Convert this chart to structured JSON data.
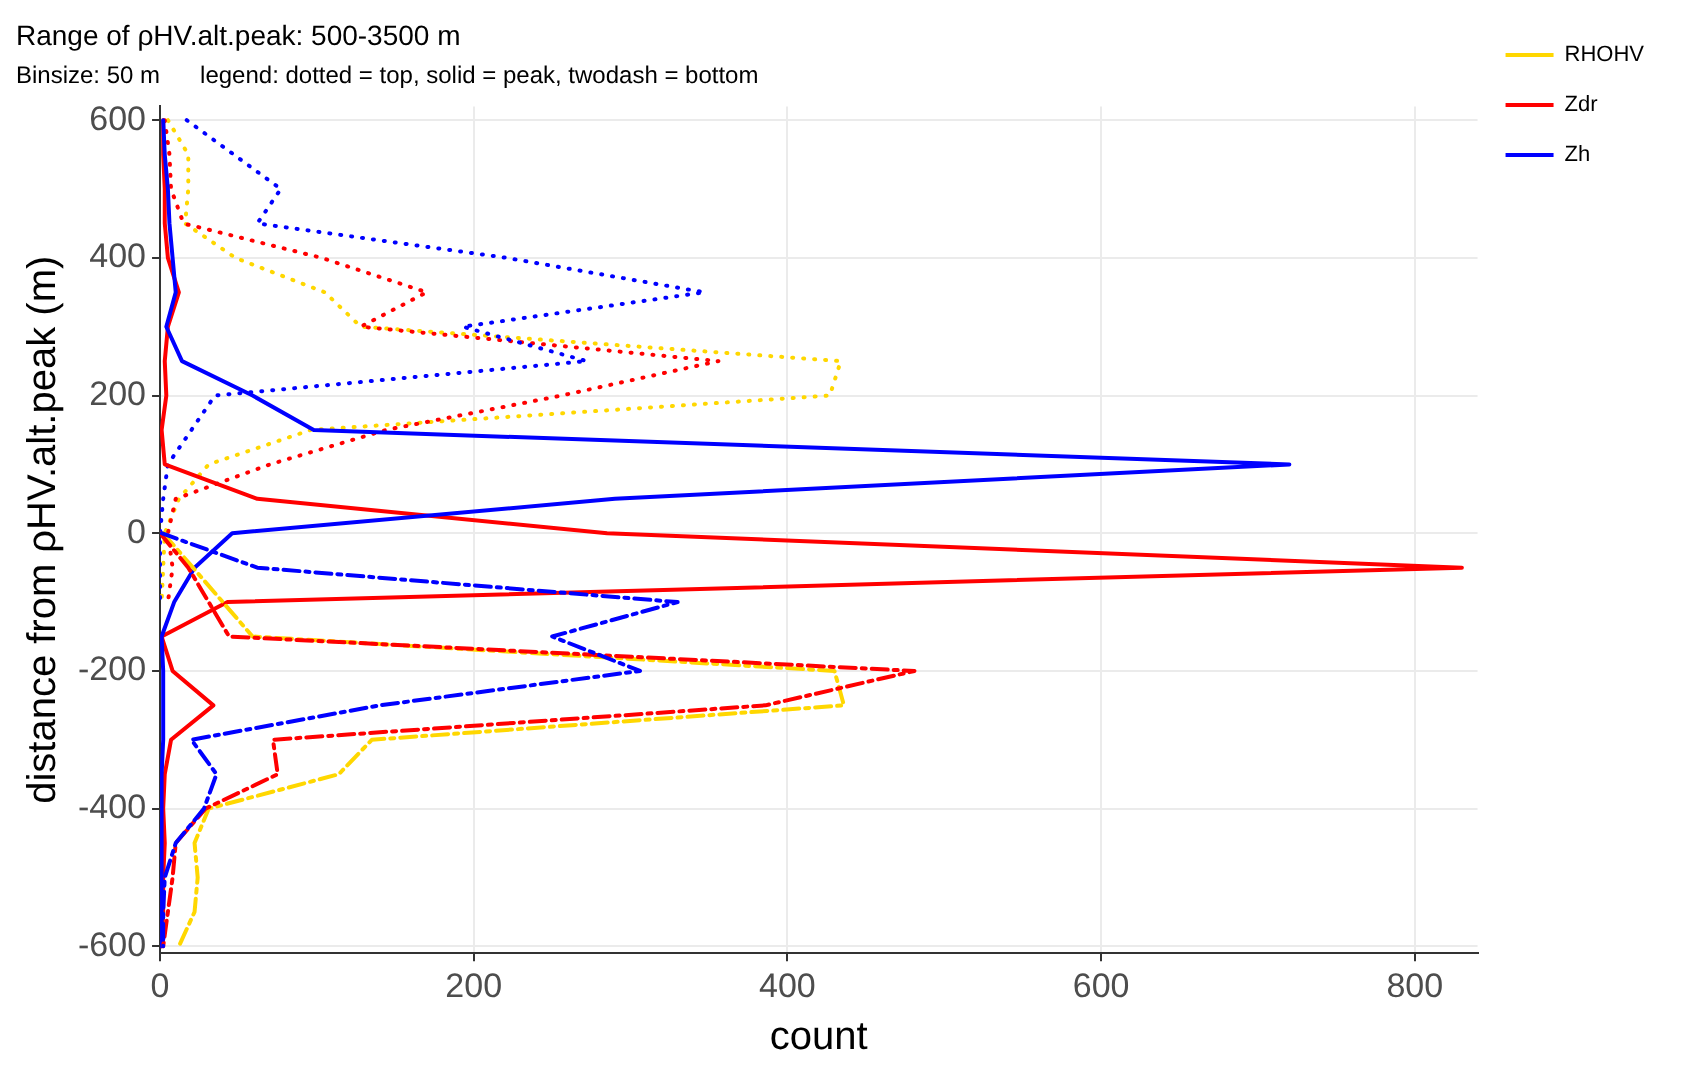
{
  "chart_data": {
    "type": "line",
    "title": "Range of ρHV.alt.peak: 500-3500 m",
    "subtitle": "Binsize: 50 m      legend: dotted = top, solid = peak, twodash = bottom",
    "xlabel": "count",
    "ylabel": "distance from ρHV.alt.peak (m)",
    "xlim": [
      0,
      840
    ],
    "xticks": [
      0,
      200,
      400,
      600,
      800
    ],
    "ylim": [
      -610,
      620
    ],
    "yticks": [
      -600,
      -400,
      -200,
      0,
      200,
      400,
      600
    ],
    "grid": true,
    "legend": "top right",
    "marker": "none",
    "series": [
      {
        "name": "RHOHV",
        "color": "#ffd700",
        "line_style": "dotted",
        "x": [
          5,
          18,
          18,
          16,
          48,
          105,
          128,
          434,
          427,
          96,
          31,
          12,
          3,
          2,
          1
        ],
        "values": [
          600,
          550,
          500,
          450,
          400,
          350,
          300,
          250,
          200,
          150,
          100,
          50,
          0,
          -50,
          -100
        ]
      },
      {
        "color": "#ff0000",
        "line_style": "dotted",
        "x": [
          3,
          6,
          7,
          15,
          103,
          170,
          128,
          356,
          256,
          144,
          70,
          10,
          5,
          8,
          5
        ],
        "values": [
          600,
          550,
          500,
          450,
          400,
          350,
          300,
          250,
          200,
          150,
          100,
          50,
          0,
          -50,
          -100
        ]
      },
      {
        "color": "#0000ff",
        "line_style": "dotted",
        "x": [
          17,
          47,
          77,
          62,
          221,
          347,
          193,
          272,
          35,
          20,
          5,
          2,
          0,
          0,
          0
        ],
        "values": [
          600,
          550,
          500,
          450,
          400,
          350,
          300,
          250,
          200,
          150,
          100,
          50,
          0,
          -50,
          -100
        ]
      },
      {
        "name": "Zdr",
        "color": "#ff0000",
        "line_style": "solid",
        "x": [
          2,
          2,
          3,
          3,
          5,
          12,
          5,
          3,
          4,
          1,
          3,
          62,
          285,
          830,
          43,
          1,
          8,
          34,
          7,
          3,
          2,
          3,
          2,
          2,
          1
        ],
        "values": [
          600,
          550,
          500,
          450,
          400,
          350,
          300,
          250,
          200,
          150,
          100,
          50,
          0,
          -50,
          -100,
          -150,
          -200,
          -250,
          -300,
          -350,
          -400,
          -450,
          -500,
          -550,
          -600
        ]
      },
      {
        "name": "Zh",
        "color": "#0000ff",
        "line_style": "solid",
        "x": [
          2,
          3,
          5,
          6,
          8,
          10,
          4,
          14,
          59,
          98,
          720,
          290,
          46,
          22,
          9,
          1,
          2,
          2,
          2,
          1,
          1,
          1,
          1,
          1,
          1
        ],
        "values": [
          600,
          550,
          500,
          450,
          400,
          350,
          300,
          250,
          200,
          150,
          100,
          50,
          0,
          -50,
          -100,
          -150,
          -200,
          -250,
          -300,
          -350,
          -400,
          -450,
          -500,
          -550,
          -600
        ]
      },
      {
        "color": "#ffd700",
        "line_style": "dashed",
        "x": [
          2,
          21,
          40,
          59,
          430,
          436,
          135,
          114,
          31,
          22,
          24,
          22,
          12
        ],
        "values": [
          0,
          -50,
          -100,
          -150,
          -200,
          -250,
          -300,
          -350,
          -400,
          -450,
          -500,
          -550,
          -600
        ]
      },
      {
        "color": "#ff0000",
        "line_style": "dashed",
        "x": [
          0,
          18,
          31,
          44,
          481,
          386,
          72,
          75,
          29,
          10,
          8,
          5,
          2
        ],
        "values": [
          0,
          -50,
          -100,
          -150,
          -200,
          -250,
          -300,
          -350,
          -400,
          -450,
          -500,
          -550,
          -600
        ]
      },
      {
        "color": "#0000ff",
        "line_style": "dashed",
        "x": [
          1,
          62,
          330,
          250,
          306,
          140,
          20,
          36,
          28,
          10,
          3,
          2,
          2
        ],
        "values": [
          0,
          -50,
          -100,
          -150,
          -200,
          -250,
          -300,
          -350,
          -400,
          -450,
          -500,
          -550,
          -600
        ]
      }
    ]
  }
}
